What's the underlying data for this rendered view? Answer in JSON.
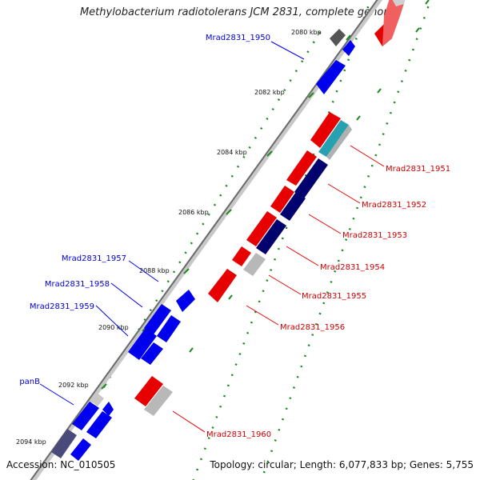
{
  "title": "Methylobacterium radiotolerans JCM 2831, complete genome",
  "footer": {
    "accession": "Accession: NC_010505",
    "summary": "Topology: circular; Length: 6,077,833 bp; Genes: 5,755"
  },
  "colors": {
    "forward": "#e60000",
    "reverse": "#0000ee",
    "reverse_dark": "#00006e",
    "grey": "#a9a9a9",
    "dark_grey": "#555555",
    "teal": "#27a0b0",
    "backbone": "#7a7a7a",
    "tick": "#1a8a1a"
  },
  "ticks": [
    "2080 kbp",
    "2082 kbp",
    "2084 kbp",
    "2086 kbp",
    "2088 kbp",
    "2090 kbp",
    "2092 kbp",
    "2094 kbp"
  ],
  "labels_left": [
    "Mrad2831_1950",
    "Mrad2831_1957",
    "Mrad2831_1958",
    "Mrad2831_1959",
    "panB"
  ],
  "labels_right": [
    "Mrad2831_1951",
    "Mrad2831_1952",
    "Mrad2831_1953",
    "Mrad2831_1954",
    "Mrad2831_1955",
    "Mrad2831_1956",
    "Mrad2831_1960"
  ]
}
